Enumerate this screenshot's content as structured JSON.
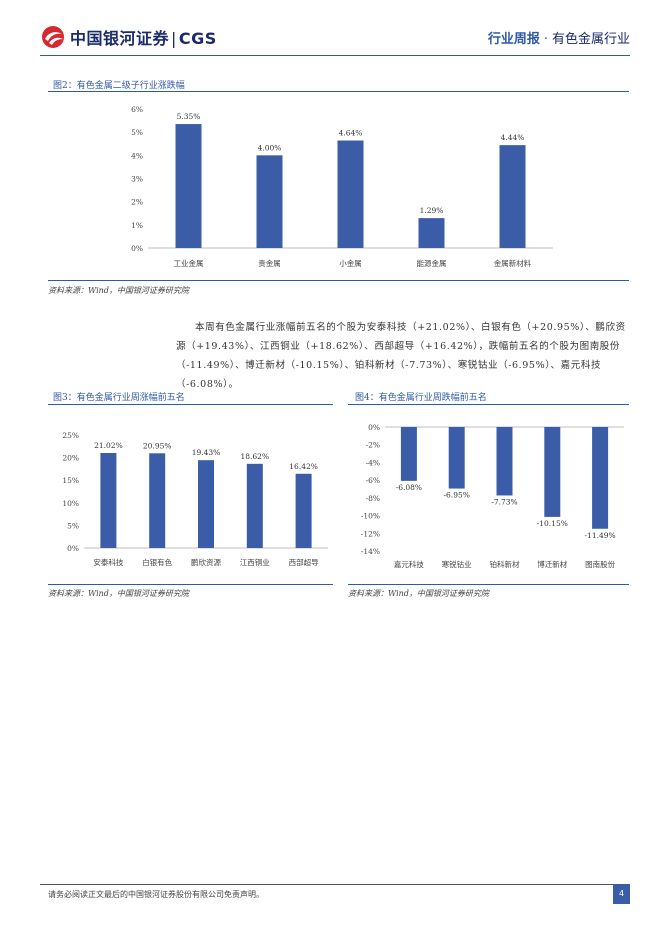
{
  "header": {
    "logo_text": "中国银河证券",
    "logo_sep": "|",
    "logo_brand": "CGS",
    "report_type": "行业周报",
    "dot": "·",
    "sector": "有色金属行业"
  },
  "colors": {
    "accent": "#2f5aa8",
    "bar": "#3b5da8",
    "brand": "#1b2a6b",
    "logo_red": "#d7282f"
  },
  "figure2": {
    "title": "图2：有色金属二级子行业涨跌幅",
    "source": "资料来源：Wind，中国银河证券研究院"
  },
  "paragraph": {
    "text": "本周有色金属行业涨幅前五名的个股为安泰科技（+21.02%）、白银有色（+20.95%）、鹏欣资源（+19.43%）、江西铜业（+18.62%）、西部超导（+16.42%），跌幅前五名的个股为图南股份（-11.49%）、博迁新材（-10.15%）、铂科新材（-7.73%）、寒锐钴业（-6.95%）、嘉元科技（-6.08%）。"
  },
  "figure3": {
    "title": "图3：有色金属行业周涨幅前五名",
    "source": "资料来源：Wind，中国银河证券研究院"
  },
  "figure4": {
    "title": "图4：有色金属行业周跌幅前五名",
    "source": "资料来源：Wind，中国银河证券研究院"
  },
  "footer": {
    "disclaimer": "请务必阅读正文最后的中国银河证券股份有限公司免责声明。",
    "page": "4"
  },
  "chart_data": [
    {
      "type": "bar",
      "categories": [
        "工业金属",
        "贵金属",
        "小金属",
        "能源金属",
        "金属新材料"
      ],
      "values": [
        5.35,
        4.0,
        4.64,
        1.29,
        4.44
      ],
      "labels": [
        "5.35%",
        "4.00%",
        "4.64%",
        "1.29%",
        "4.44%"
      ],
      "yticks": [
        "0%",
        "1%",
        "2%",
        "3%",
        "4%",
        "5%",
        "6%"
      ],
      "ylim": [
        0,
        6
      ],
      "grid": false,
      "legend": "none"
    },
    {
      "type": "bar",
      "categories": [
        "安泰科技",
        "白银有色",
        "鹏欣资源",
        "江西铜业",
        "西部超导"
      ],
      "values": [
        21.02,
        20.95,
        19.43,
        18.62,
        16.42
      ],
      "labels": [
        "21.02%",
        "20.95%",
        "19.43%",
        "18.62%",
        "16.42%"
      ],
      "yticks": [
        "0%",
        "5%",
        "10%",
        "15%",
        "20%",
        "25%"
      ],
      "ylim": [
        0,
        25
      ],
      "grid": false,
      "legend": "none"
    },
    {
      "type": "bar",
      "categories": [
        "嘉元科技",
        "寒锐钴业",
        "铂科新材",
        "博迁新材",
        "图南股份"
      ],
      "values": [
        -6.08,
        -6.95,
        -7.73,
        -10.15,
        -11.49
      ],
      "labels": [
        "-6.08%",
        "-6.95%",
        "-7.73%",
        "-10.15%",
        "-11.49%"
      ],
      "yticks": [
        "0%",
        "-2%",
        "-4%",
        "-6%",
        "-8%",
        "-10%",
        "-12%",
        "-14%"
      ],
      "ylim": [
        -14,
        0
      ],
      "grid": false,
      "legend": "none"
    }
  ]
}
